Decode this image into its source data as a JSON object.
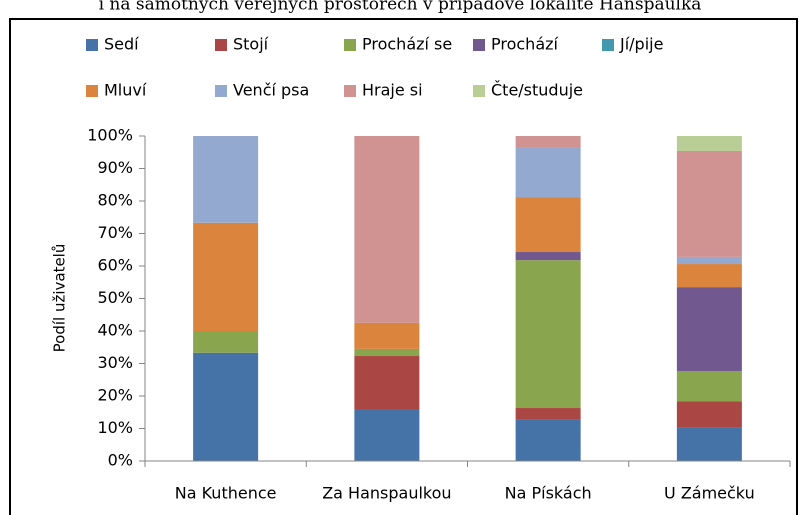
{
  "chart_data": {
    "type": "stacked_bar",
    "title": "í na samotných veřejných prostorech v případové lokalitě Hanspaulka",
    "y_label": "Podíl uživatelů",
    "categories": [
      "Na Kuthence",
      "Za Hanspaulkou",
      "Na Pískách",
      "U Zámečku"
    ],
    "series": [
      {
        "name": "Sedí",
        "color": "#4572a7",
        "values": [
          33.3,
          16,
          12.9,
          10.2
        ]
      },
      {
        "name": "Stojí",
        "color": "#aa4643",
        "values": [
          0,
          16.3,
          3.4,
          8.1
        ]
      },
      {
        "name": "Prochází se",
        "color": "#89a54e",
        "values": [
          6.7,
          2.2,
          45.5,
          9.4
        ]
      },
      {
        "name": "Prochází",
        "color": "#71588f",
        "values": [
          0,
          0,
          2.5,
          25.8
        ]
      },
      {
        "name": "Jí/pije",
        "color": "#4198af",
        "values": [
          0,
          0,
          0,
          0
        ]
      },
      {
        "name": "Mluví",
        "color": "#db843d",
        "values": [
          33.3,
          8,
          16.9,
          7.1
        ]
      },
      {
        "name": "Venčí psa",
        "color": "#93a9cf",
        "values": [
          26.7,
          0,
          15.4,
          2.2
        ]
      },
      {
        "name": "Hraje si",
        "color": "#d19392",
        "values": [
          0,
          57.5,
          3.4,
          32.6
        ]
      },
      {
        "name": "Čte/studuje",
        "color": "#b9cd96",
        "values": [
          0,
          0,
          0,
          4.6
        ]
      }
    ],
    "ylim": [
      0,
      100
    ],
    "yticks": [
      {
        "value": 0,
        "label": "0%"
      },
      {
        "value": 10,
        "label": "10%"
      },
      {
        "value": 20,
        "label": "20%"
      },
      {
        "value": 30,
        "label": "30%"
      },
      {
        "value": 40,
        "label": "40%"
      },
      {
        "value": 50,
        "label": "50%"
      },
      {
        "value": 60,
        "label": "60%"
      },
      {
        "value": 70,
        "label": "70%"
      },
      {
        "value": 80,
        "label": "80%"
      },
      {
        "value": 90,
        "label": "90%"
      },
      {
        "value": 100,
        "label": "100%"
      }
    ],
    "grid": false
  }
}
